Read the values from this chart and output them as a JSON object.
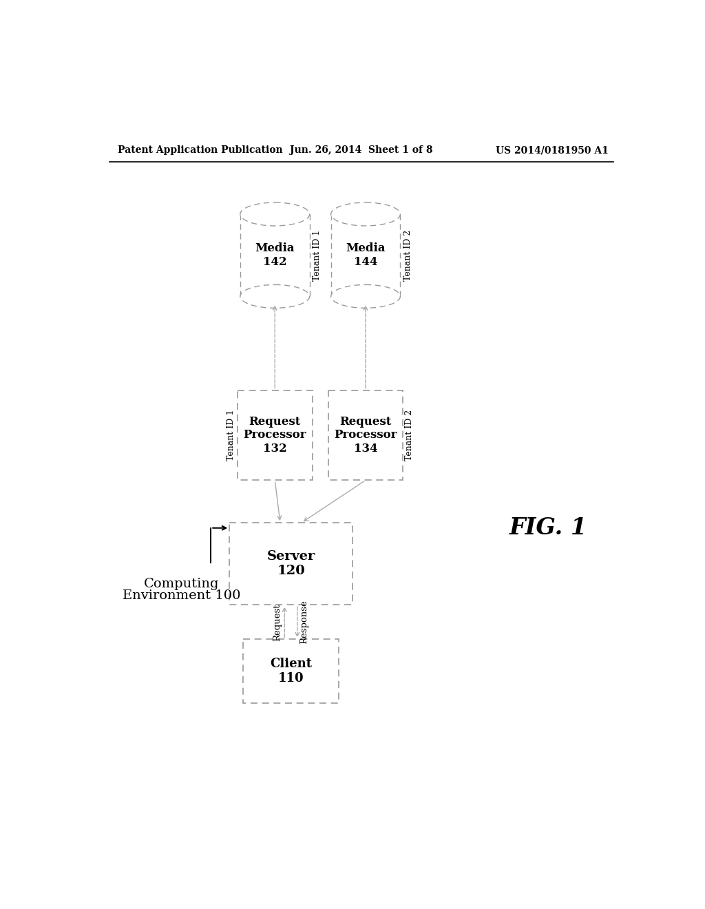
{
  "bg_color": "#ffffff",
  "header_left": "Patent Application Publication",
  "header_center": "Jun. 26, 2014  Sheet 1 of 8",
  "header_right": "US 2014/0181950 A1",
  "fig_label": "FIG. 1",
  "env_label_1": "Computing",
  "env_label_2": "Environment 100",
  "client_label": "Client\n110",
  "server_label": "Server\n120",
  "rp1_label": "Request\nProcessor\n132",
  "rp2_label": "Request\nProcessor\n134",
  "media1_label": "Media\n142",
  "media2_label": "Media\n144",
  "tenant1_rp_label": "Tenant ID 1",
  "tenant2_rp_label": "Tenant ID 2",
  "tenant1_media_label": "Tenant ID 1",
  "tenant2_media_label": "Tenant ID 2",
  "request_label": "Request",
  "response_label": "Response",
  "edge_color": "#999999",
  "text_color": "#000000",
  "arrow_color": "#aaaaaa"
}
